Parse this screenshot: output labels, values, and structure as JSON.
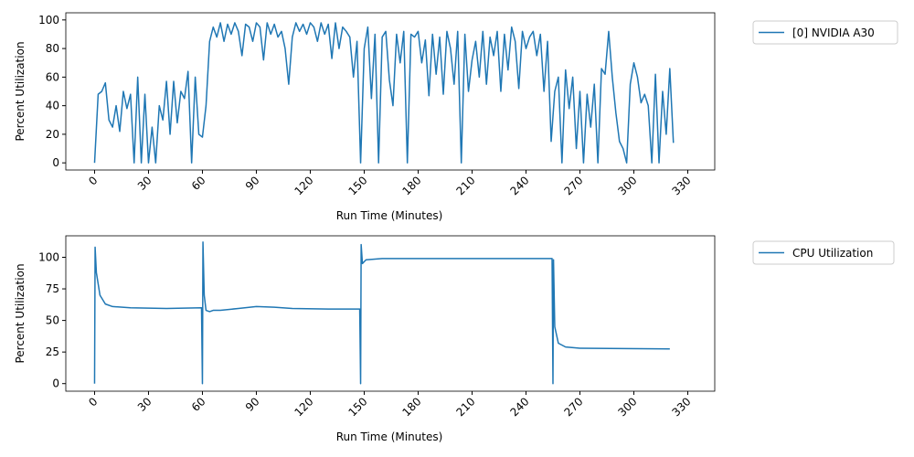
{
  "chart_data": [
    {
      "type": "line",
      "xlabel": "Run Time (Minutes)",
      "ylabel": "Percent Utilization",
      "x": [
        0,
        2,
        4,
        6,
        8,
        10,
        12,
        14,
        16,
        18,
        20,
        22,
        24,
        26,
        28,
        30,
        32,
        34,
        36,
        38,
        40,
        42,
        44,
        46,
        48,
        50,
        52,
        54,
        56,
        58,
        60,
        62,
        64,
        66,
        68,
        70,
        72,
        74,
        76,
        78,
        80,
        82,
        84,
        86,
        88,
        90,
        92,
        94,
        96,
        98,
        100,
        102,
        104,
        106,
        108,
        110,
        112,
        114,
        116,
        118,
        120,
        122,
        124,
        126,
        128,
        130,
        132,
        134,
        136,
        138,
        140,
        142,
        144,
        146,
        148,
        150,
        152,
        154,
        156,
        158,
        160,
        162,
        164,
        166,
        168,
        170,
        172,
        174,
        176,
        178,
        180,
        182,
        184,
        186,
        188,
        190,
        192,
        194,
        196,
        198,
        200,
        202,
        204,
        206,
        208,
        210,
        212,
        214,
        216,
        218,
        220,
        222,
        224,
        226,
        228,
        230,
        232,
        234,
        236,
        238,
        240,
        242,
        244,
        246,
        248,
        250,
        252,
        254,
        256,
        258,
        260,
        262,
        264,
        266,
        268,
        270,
        272,
        274,
        276,
        278,
        280,
        282,
        284,
        286,
        288,
        290,
        292,
        294,
        296,
        298,
        300,
        302,
        304,
        306,
        308,
        310,
        312,
        314,
        316,
        318,
        320,
        322
      ],
      "series": [
        {
          "name": "[0] NVIDIA A30",
          "color": "#1f77b4",
          "values": [
            0,
            48,
            50,
            56,
            30,
            25,
            40,
            22,
            50,
            38,
            48,
            0,
            60,
            0,
            48,
            0,
            25,
            0,
            40,
            30,
            57,
            20,
            57,
            28,
            50,
            45,
            64,
            0,
            60,
            20,
            18,
            40,
            85,
            95,
            88,
            98,
            85,
            97,
            90,
            98,
            92,
            75,
            97,
            95,
            85,
            98,
            95,
            72,
            98,
            90,
            97,
            88,
            92,
            80,
            55,
            88,
            98,
            92,
            97,
            90,
            98,
            95,
            85,
            98,
            90,
            97,
            73,
            98,
            80,
            95,
            92,
            88,
            60,
            85,
            0,
            80,
            95,
            45,
            90,
            0,
            88,
            92,
            58,
            40,
            90,
            70,
            92,
            0,
            90,
            88,
            92,
            70,
            86,
            47,
            90,
            62,
            88,
            48,
            92,
            80,
            55,
            92,
            0,
            90,
            50,
            72,
            85,
            60,
            92,
            55,
            88,
            75,
            92,
            50,
            90,
            65,
            95,
            85,
            52,
            92,
            80,
            88,
            92,
            75,
            90,
            50,
            85,
            15,
            50,
            60,
            0,
            65,
            38,
            60,
            10,
            50,
            0,
            48,
            25,
            55,
            0,
            66,
            62,
            92,
            60,
            35,
            15,
            10,
            0,
            55,
            70,
            60,
            42,
            48,
            40,
            0,
            62,
            0,
            50,
            20,
            66,
            14
          ]
        }
      ],
      "xlim": [
        -16,
        345
      ],
      "ylim": [
        -5,
        105
      ],
      "xticks": [
        0,
        30,
        60,
        90,
        120,
        150,
        180,
        210,
        240,
        270,
        300,
        330
      ],
      "yticks": [
        0,
        20,
        40,
        60,
        80,
        100
      ]
    },
    {
      "type": "line",
      "xlabel": "Run Time (Minutes)",
      "ylabel": "Percent Utilization",
      "x": [
        0,
        0.3,
        1,
        3,
        6,
        10,
        20,
        40,
        59.5,
        60,
        60.3,
        61,
        62,
        64,
        66,
        70,
        80,
        90,
        100,
        110,
        130,
        147.5,
        148,
        148.3,
        149,
        151,
        160,
        200,
        254.5,
        255,
        255.3,
        256,
        258,
        262,
        270,
        320
      ],
      "series": [
        {
          "name": "CPU Utilization",
          "color": "#1f77b4",
          "values": [
            0,
            108,
            88,
            70,
            63,
            61,
            60,
            59.5,
            60,
            0,
            112,
            70,
            58,
            57,
            58,
            58,
            59.5,
            61,
            60.5,
            59.5,
            59,
            59,
            0,
            110,
            95,
            98,
            99,
            99,
            99,
            0,
            98,
            45,
            32,
            29,
            28,
            27.5
          ]
        }
      ],
      "xlim": [
        -16,
        345
      ],
      "ylim": [
        -6,
        117
      ],
      "xticks": [
        0,
        30,
        60,
        90,
        120,
        150,
        180,
        210,
        240,
        270,
        300,
        330
      ],
      "yticks": [
        0,
        25,
        50,
        75,
        100
      ]
    }
  ]
}
